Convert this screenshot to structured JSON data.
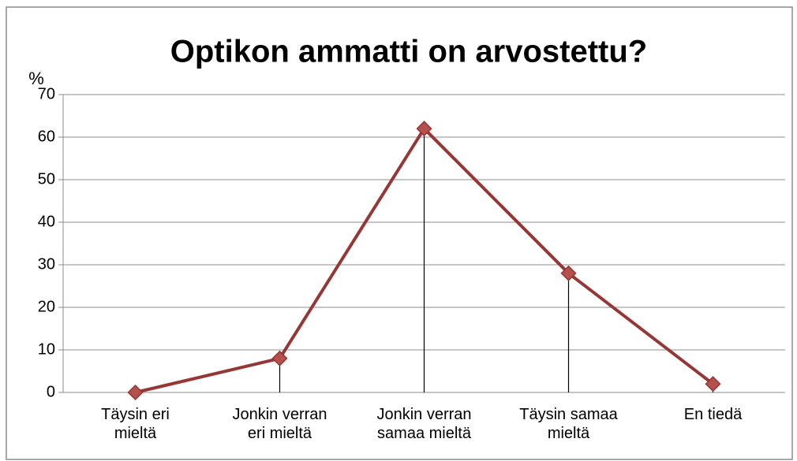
{
  "chart_data": {
    "type": "line",
    "title": "Optikon ammatti on arvostettu?",
    "y_label": "%",
    "categories": [
      "Täysin eri mieltä",
      "Jonkin verran eri mieltä",
      "Jonkin verran samaa mieltä",
      "Täysin samaa mieltä",
      "En tiedä"
    ],
    "series": [
      {
        "name": "%",
        "color": "#953735",
        "values": [
          0,
          8,
          62,
          28,
          2
        ]
      }
    ],
    "ylim": [
      0,
      70
    ],
    "yticks": [
      0,
      10,
      20,
      30,
      40,
      50,
      60,
      70
    ],
    "grid": true,
    "drop_lines": true
  }
}
